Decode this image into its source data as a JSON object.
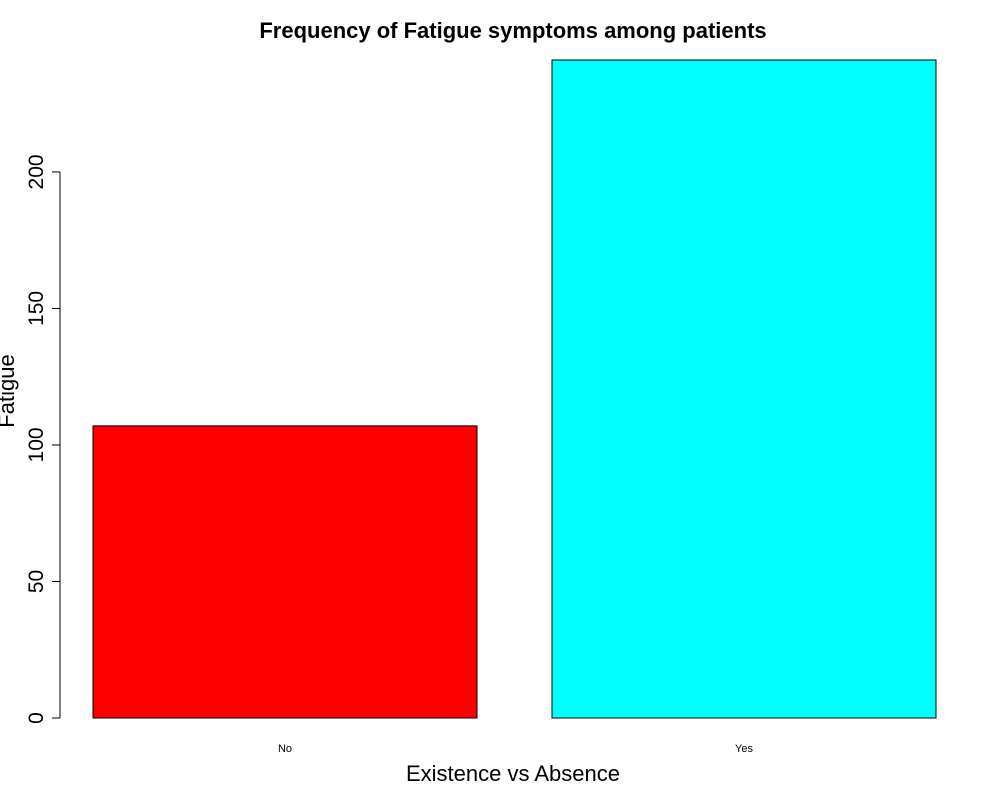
{
  "chart_data": {
    "type": "bar",
    "title": "Frequency of Fatigue symptoms among patients",
    "xlabel": "Existence vs Absence",
    "ylabel": "Fatigue",
    "categories": [
      "No",
      "Yes"
    ],
    "values": [
      107,
      241
    ],
    "colors": [
      "#ff0000",
      "#00ffff"
    ],
    "ylim": [
      0,
      241
    ],
    "yticks": [
      0,
      50,
      100,
      150,
      200
    ],
    "grid": false,
    "legend": "none"
  }
}
